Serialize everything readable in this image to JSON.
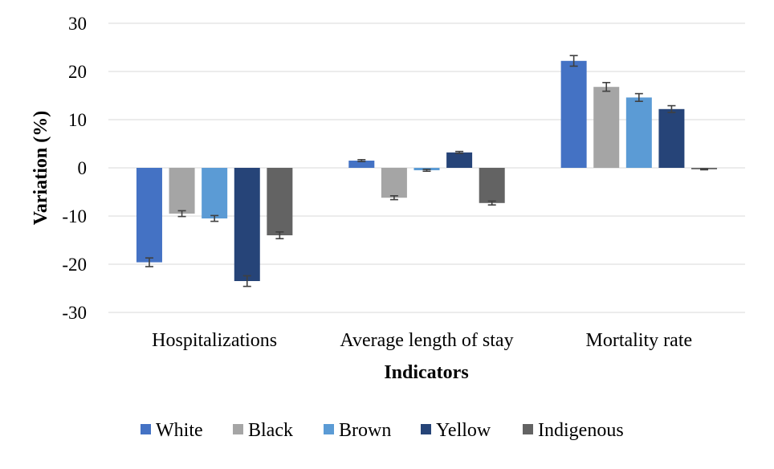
{
  "chart_data": {
    "type": "bar",
    "title": "",
    "xlabel": "Indicators",
    "ylabel": "Variation (%)",
    "ylim": [
      -30,
      30
    ],
    "yticks": [
      30,
      20,
      10,
      0,
      -10,
      -20,
      -30
    ],
    "grid": true,
    "legend_position": "bottom",
    "categories": [
      "Hospitalizations",
      "Average length of stay",
      "Mortality rate"
    ],
    "series": [
      {
        "name": "White",
        "color": "#4472c4",
        "values": [
          -19.6,
          1.5,
          22.2
        ],
        "errors": [
          0.9,
          0.2,
          1.1
        ]
      },
      {
        "name": "Black",
        "color": "#a5a5a5",
        "values": [
          -9.5,
          -6.2,
          16.8
        ],
        "errors": [
          0.6,
          0.4,
          0.9
        ]
      },
      {
        "name": "Brown",
        "color": "#5b9bd5",
        "values": [
          -10.5,
          -0.5,
          14.6
        ],
        "errors": [
          0.6,
          0.2,
          0.8
        ]
      },
      {
        "name": "Yellow",
        "color": "#264478",
        "values": [
          -23.5,
          3.2,
          12.2
        ],
        "errors": [
          1.1,
          0.2,
          0.7
        ]
      },
      {
        "name": "Indigenous",
        "color": "#636363",
        "values": [
          -14.0,
          -7.3,
          -0.3
        ],
        "errors": [
          0.7,
          0.4,
          0.1
        ]
      }
    ]
  }
}
